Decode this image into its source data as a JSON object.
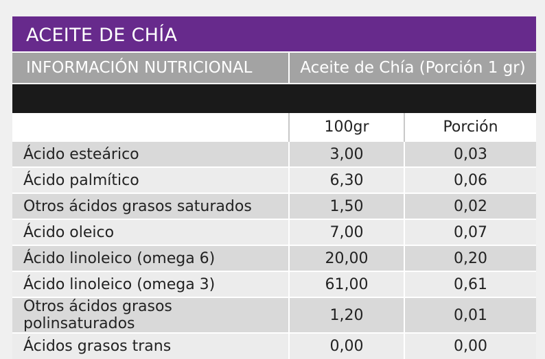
{
  "title": "ACEITE DE CHÍA",
  "subheader": {
    "left": "INFORMACIÓN NUTRICIONAL",
    "right": "Aceite de Chía (Porción 1 gr)"
  },
  "columns": [
    "100gr",
    "Porción"
  ],
  "rows": [
    {
      "name": "Ácido esteárico",
      "per100": "3,00",
      "portion": "0,03"
    },
    {
      "name": "Ácido palmítico",
      "per100": "6,30",
      "portion": "0,06"
    },
    {
      "name": "Otros ácidos grasos saturados",
      "per100": "1,50",
      "portion": "0,02"
    },
    {
      "name": "Ácido oleico",
      "per100": "7,00",
      "portion": "0,07"
    },
    {
      "name": "Ácido linoleico (omega 6)",
      "per100": "20,00",
      "portion": "0,20"
    },
    {
      "name": "Ácido linoleico (omega 3)",
      "per100": "61,00",
      "portion": "0,61"
    },
    {
      "name": "Otros ácidos grasos polinsaturados",
      "per100": "1,20",
      "portion": "0,01"
    },
    {
      "name": "Ácidos grasos trans",
      "per100": "0,00",
      "portion": "0,00"
    }
  ]
}
